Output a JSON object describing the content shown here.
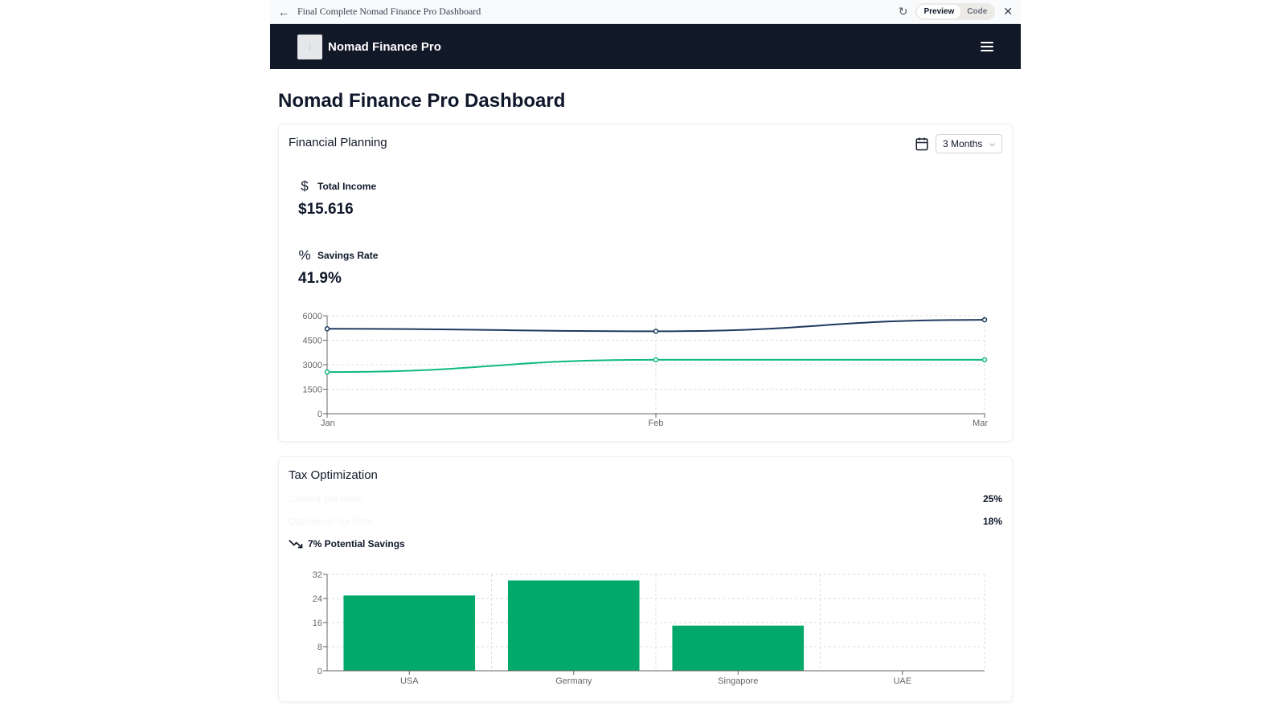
{
  "browser": {
    "back_icon": "arrow-left-icon",
    "title": "Final Complete Nomad Finance Pro Dashboard",
    "refresh_icon": "refresh-icon",
    "preview_label": "Preview",
    "code_label": "Code",
    "close_icon": "close-icon"
  },
  "navbar": {
    "logo_icon": "logo-placeholder-icon",
    "brand": "Nomad Finance Pro",
    "menu_icon": "hamburger-menu-icon"
  },
  "page": {
    "title": "Nomad Finance Pro Dashboard"
  },
  "financial_planning": {
    "title": "Financial Planning",
    "calendar_icon": "calendar-icon",
    "range_value": "3 Months",
    "total_income_label": "Total Income",
    "total_income_icon": "dollar-icon",
    "total_income_value": "$15.616",
    "savings_rate_label": "Savings Rate",
    "savings_rate_icon": "percent-icon",
    "savings_rate_value": "41.9%"
  },
  "tax_optimization": {
    "title": "Tax Optimization",
    "current_label": "Current Tax Rate:",
    "current_value": "25%",
    "optimized_label": "Optimized Tax Rate:",
    "optimized_value": "18%",
    "savings_icon": "trending-down-icon",
    "savings_label": "7% Potential Savings"
  },
  "colors": {
    "navy": "#1e3a5f",
    "green": "#10b981",
    "bar_green": "#03a96b",
    "navbar": "#111827"
  },
  "chart_data": [
    {
      "type": "line",
      "categories": [
        "Jan",
        "Feb",
        "Mar"
      ],
      "series": [
        {
          "values": [
            5200,
            5050,
            5750
          ],
          "color": "#1e3a5f"
        },
        {
          "values": [
            2550,
            3300,
            3300
          ],
          "color": "#10b981"
        }
      ],
      "ylim": [
        0,
        6000
      ],
      "yticks": [
        0,
        1500,
        3000,
        4500,
        6000
      ],
      "grid": true
    },
    {
      "type": "bar",
      "categories": [
        "USA",
        "Germany",
        "Singapore",
        "UAE"
      ],
      "values": [
        25,
        30,
        15,
        0
      ],
      "color": "#03a96b",
      "ylim": [
        0,
        32
      ],
      "yticks": [
        0,
        8,
        16,
        24,
        32
      ],
      "grid": true
    }
  ]
}
